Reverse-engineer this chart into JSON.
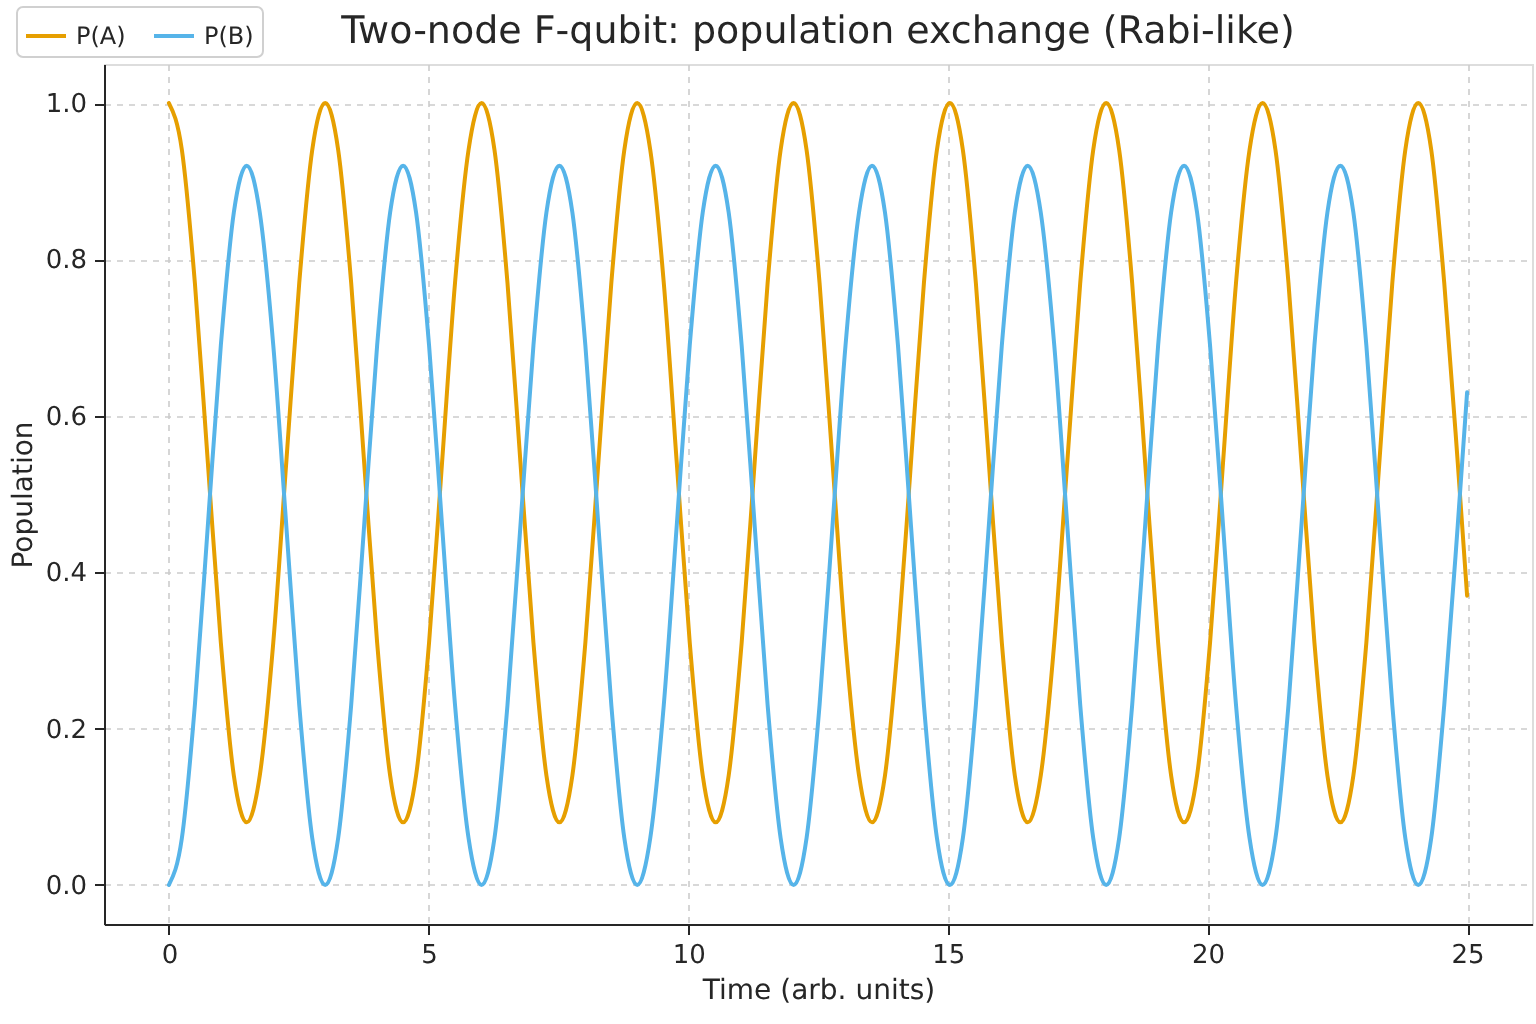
{
  "chart_data": {
    "type": "line",
    "title": "Two-node F-qubit: population exchange (Rabi-like)",
    "xlabel": "Time (arb. units)",
    "ylabel": "Population",
    "x": [
      0,
      0.25,
      0.5,
      0.75,
      1.0,
      1.25,
      1.5,
      1.75,
      2.01,
      2.26,
      2.51,
      2.76,
      3.01,
      3.26,
      3.51,
      3.76,
      4.01,
      4.26,
      4.51,
      4.76,
      5.01,
      5.26,
      5.51,
      5.77,
      6.02,
      6.27,
      6.52,
      6.77,
      7.02,
      7.27,
      7.52,
      7.77,
      8.02,
      8.27,
      8.52,
      8.77,
      9.02,
      9.27,
      9.53,
      9.78,
      10.03,
      10.28,
      10.53,
      10.78,
      11.03,
      11.28,
      11.53,
      11.78,
      12.03,
      12.28,
      12.53,
      12.78,
      13.03,
      13.29,
      13.54,
      13.79,
      14.04,
      14.29,
      14.54,
      14.79,
      15.04,
      15.29,
      15.54,
      15.79,
      16.04,
      16.29,
      16.54,
      16.79,
      17.05,
      17.3,
      17.55,
      17.8,
      18.05,
      18.3,
      18.55,
      18.8,
      19.05,
      19.3,
      19.55,
      19.8,
      20.05,
      20.3,
      20.55,
      20.81,
      21.06,
      21.31,
      21.56,
      21.81,
      22.06,
      22.31,
      22.56,
      22.81,
      23.06,
      23.31,
      23.56,
      23.81,
      24.06,
      24.31,
      24.56,
      24.82,
      25.0
    ],
    "series": [
      {
        "name": "P(A)",
        "color": "#e69f00",
        "values": [
          1.0,
          0.94,
          0.77,
          0.54,
          0.31,
          0.14,
          0.08,
          0.14,
          0.31,
          0.54,
          0.77,
          0.94,
          1.0,
          0.94,
          0.77,
          0.54,
          0.31,
          0.14,
          0.08,
          0.14,
          0.31,
          0.54,
          0.77,
          0.94,
          1.0,
          0.94,
          0.77,
          0.54,
          0.31,
          0.14,
          0.08,
          0.14,
          0.31,
          0.54,
          0.77,
          0.94,
          1.0,
          0.94,
          0.77,
          0.54,
          0.31,
          0.14,
          0.08,
          0.14,
          0.31,
          0.54,
          0.77,
          0.94,
          1.0,
          0.94,
          0.77,
          0.54,
          0.31,
          0.14,
          0.08,
          0.14,
          0.31,
          0.54,
          0.77,
          0.94,
          1.0,
          0.94,
          0.77,
          0.54,
          0.31,
          0.14,
          0.08,
          0.14,
          0.31,
          0.54,
          0.77,
          0.94,
          1.0,
          0.94,
          0.77,
          0.54,
          0.31,
          0.14,
          0.08,
          0.14,
          0.31,
          0.54,
          0.77,
          0.94,
          1.0,
          0.94,
          0.77,
          0.54,
          0.31,
          0.14,
          0.08,
          0.14,
          0.31,
          0.54,
          0.77,
          0.94,
          1.0,
          0.94,
          0.77,
          0.54,
          0.37
        ]
      },
      {
        "name": "P(B)",
        "color": "#56b4e9",
        "values": [
          0.0,
          0.06,
          0.23,
          0.46,
          0.69,
          0.86,
          0.92,
          0.86,
          0.69,
          0.46,
          0.23,
          0.06,
          0.0,
          0.06,
          0.23,
          0.46,
          0.69,
          0.86,
          0.92,
          0.86,
          0.69,
          0.46,
          0.23,
          0.06,
          0.0,
          0.06,
          0.23,
          0.46,
          0.69,
          0.86,
          0.92,
          0.86,
          0.69,
          0.46,
          0.23,
          0.06,
          0.0,
          0.06,
          0.23,
          0.46,
          0.69,
          0.86,
          0.92,
          0.86,
          0.69,
          0.46,
          0.23,
          0.06,
          0.0,
          0.06,
          0.23,
          0.46,
          0.69,
          0.86,
          0.92,
          0.86,
          0.69,
          0.46,
          0.23,
          0.06,
          0.0,
          0.06,
          0.23,
          0.46,
          0.69,
          0.86,
          0.92,
          0.86,
          0.69,
          0.46,
          0.23,
          0.06,
          0.0,
          0.06,
          0.23,
          0.46,
          0.69,
          0.86,
          0.92,
          0.86,
          0.69,
          0.46,
          0.23,
          0.06,
          0.0,
          0.06,
          0.23,
          0.46,
          0.69,
          0.86,
          0.92,
          0.86,
          0.69,
          0.46,
          0.23,
          0.06,
          0.0,
          0.06,
          0.23,
          0.46,
          0.63
        ]
      }
    ],
    "xlim": [
      -1.25,
      26.25
    ],
    "xticks": [
      0,
      5,
      10,
      15,
      20,
      25
    ],
    "ylim": [
      -0.05,
      1.05
    ],
    "yticks": [
      {
        "value": 0,
        "label": "0.0"
      },
      {
        "value": 0.2,
        "label": "0.2"
      },
      {
        "value": 0.4,
        "label": "0.4"
      },
      {
        "value": 0.6,
        "label": "0.6"
      },
      {
        "value": 0.8,
        "label": "0.8"
      },
      {
        "value": 1,
        "label": "1.0"
      }
    ],
    "grid": true,
    "legend": "top left"
  }
}
